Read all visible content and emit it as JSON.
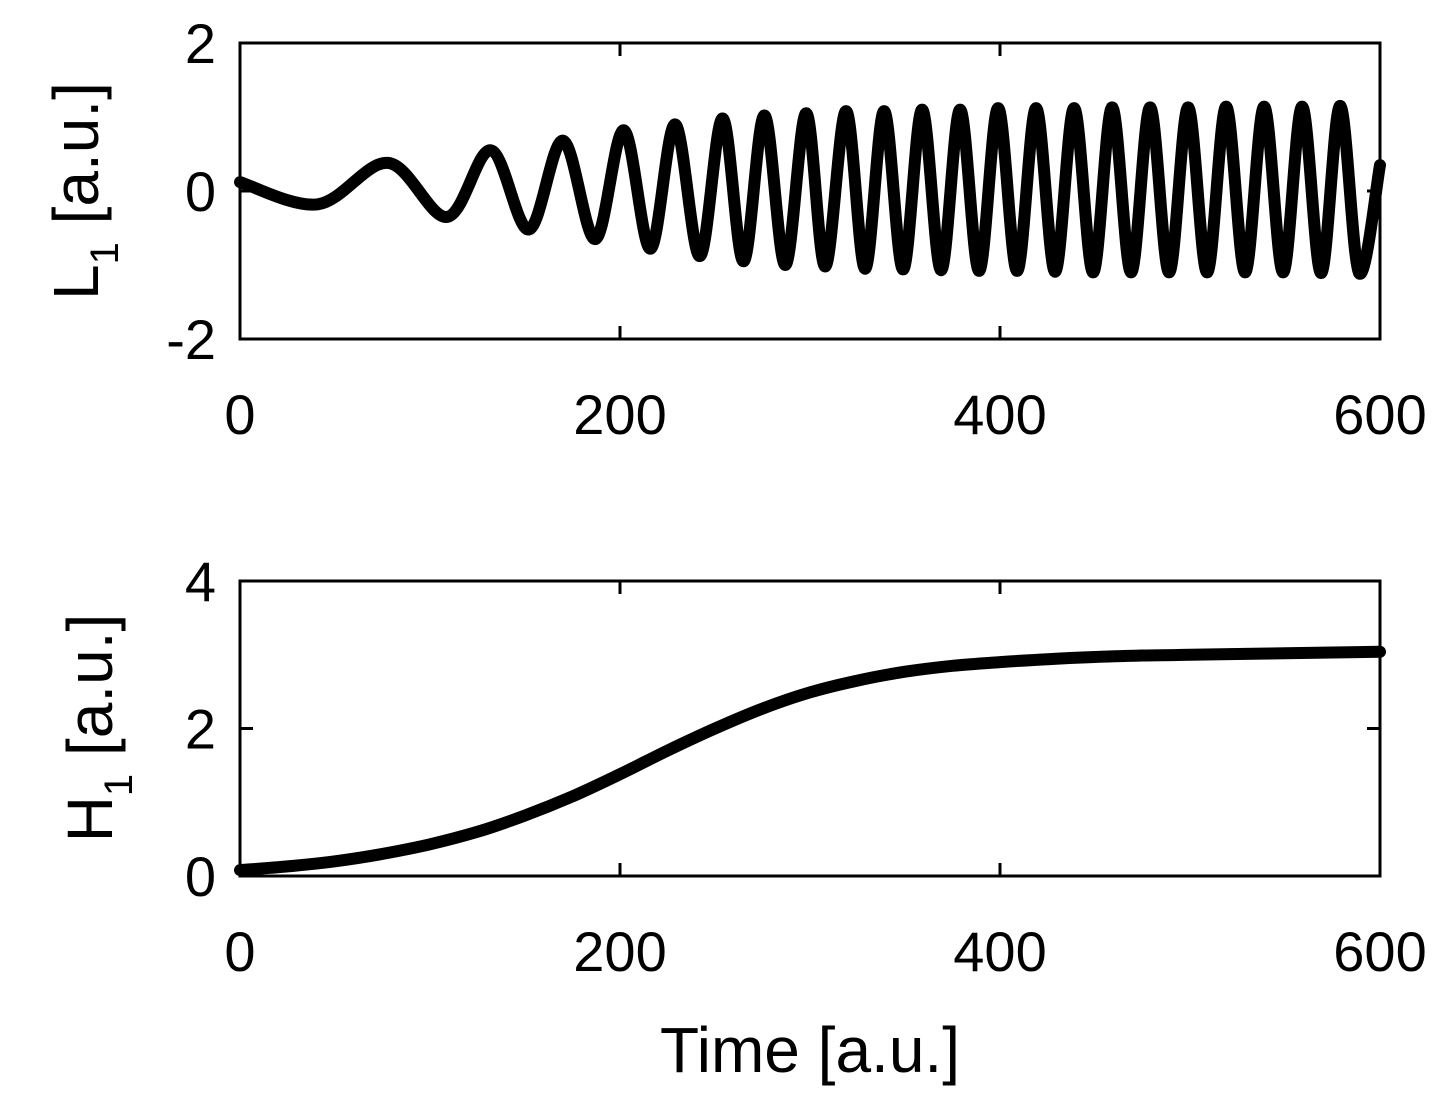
{
  "chart_data": [
    {
      "type": "line",
      "ylabel": {
        "main": "L",
        "sub": "1",
        "unit": " [a.u.]"
      },
      "xlabel": "",
      "xlim": [
        0,
        600
      ],
      "ylim": [
        -2,
        2
      ],
      "xticks": [
        0,
        200,
        400,
        600
      ],
      "xtick_labels": [
        "0",
        "200",
        "400",
        "600"
      ],
      "yticks": [
        -2,
        0,
        2
      ],
      "ytick_labels": [
        "-2",
        "0",
        "2"
      ],
      "grid": false,
      "series": [
        {
          "color": "#000000",
          "x": [
            0,
            41,
            78,
            109,
            132,
            152,
            170,
            187,
            202,
            216,
            229,
            242,
            254,
            265,
            276,
            287,
            298,
            308,
            319,
            329,
            339,
            349,
            359,
            369,
            379,
            389,
            399,
            409,
            419,
            429,
            439,
            449,
            459,
            469,
            479,
            489,
            499,
            509,
            519,
            529,
            539,
            549,
            559,
            569,
            579,
            589,
            600
          ],
          "y": [
            0.12,
            -0.18,
            0.38,
            -0.35,
            0.55,
            -0.52,
            0.68,
            -0.65,
            0.82,
            -0.78,
            0.9,
            -0.88,
            0.98,
            -0.95,
            1.02,
            -1.0,
            1.05,
            -1.02,
            1.08,
            -1.05,
            1.08,
            -1.06,
            1.1,
            -1.07,
            1.1,
            -1.08,
            1.12,
            -1.08,
            1.12,
            -1.09,
            1.12,
            -1.1,
            1.13,
            -1.1,
            1.13,
            -1.1,
            1.13,
            -1.1,
            1.14,
            -1.1,
            1.14,
            -1.1,
            1.14,
            -1.11,
            1.15,
            -1.11,
            0.35
          ]
        }
      ]
    },
    {
      "type": "line",
      "ylabel": {
        "main": "H",
        "sub": "1",
        "unit": " [a.u.]"
      },
      "xlabel": "Time [a.u.]",
      "xlim": [
        0,
        600
      ],
      "ylim": [
        0,
        4
      ],
      "xticks": [
        0,
        200,
        400,
        600
      ],
      "xtick_labels": [
        "0",
        "200",
        "400",
        "600"
      ],
      "yticks": [
        0,
        2,
        4
      ],
      "ytick_labels": [
        "0",
        "2",
        "4"
      ],
      "grid": false,
      "series": [
        {
          "color": "#000000",
          "x": [
            0,
            25,
            50,
            75,
            100,
            125,
            150,
            175,
            200,
            225,
            250,
            275,
            300,
            325,
            350,
            375,
            400,
            425,
            450,
            475,
            500,
            525,
            550,
            575,
            600
          ],
          "y": [
            0.08,
            0.13,
            0.2,
            0.3,
            0.43,
            0.6,
            0.82,
            1.08,
            1.38,
            1.7,
            2.0,
            2.27,
            2.49,
            2.65,
            2.77,
            2.85,
            2.9,
            2.94,
            2.97,
            2.99,
            3.0,
            3.01,
            3.02,
            3.03,
            3.04
          ]
        }
      ]
    }
  ]
}
